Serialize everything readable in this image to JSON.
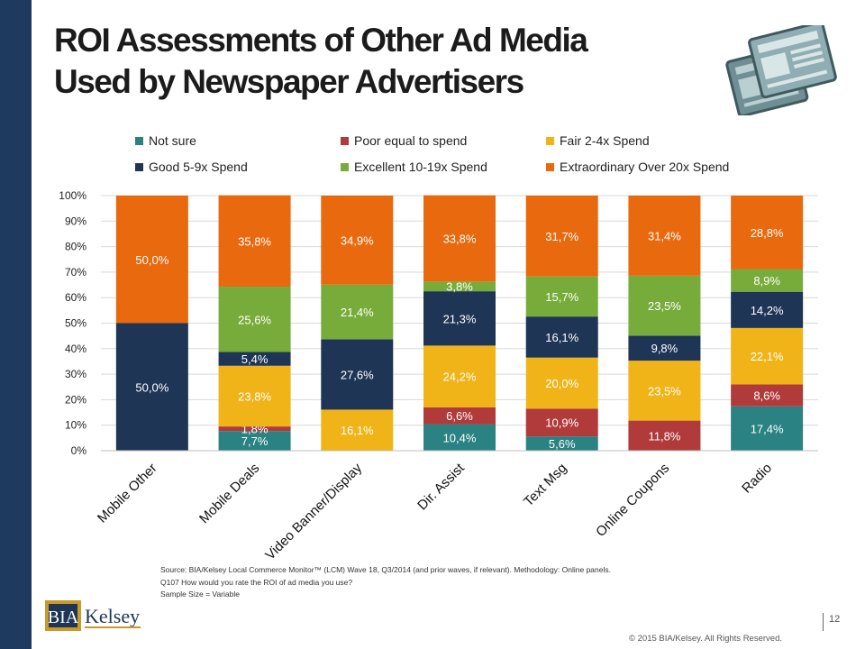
{
  "header": {
    "title_line1": "ROI Assessments of Other Ad Media",
    "title_line2": "Used by Newspaper Advertisers"
  },
  "icons": {
    "decoration": "newspaper-icon"
  },
  "chart_data": {
    "type": "bar",
    "stacked": true,
    "categories": [
      "Mobile Other",
      "Mobile Deals",
      "Video Banner/Display",
      "Dir. Assist",
      "Text Msg",
      "Online Coupons",
      "Radio"
    ],
    "ylim": [
      0,
      100
    ],
    "yticks": [
      "0%",
      "10%",
      "20%",
      "30%",
      "40%",
      "50%",
      "60%",
      "70%",
      "80%",
      "90%",
      "100%"
    ],
    "grid": true,
    "legend_position": "top",
    "series": [
      {
        "name": "Not sure",
        "color": "#2a8282",
        "values": [
          0,
          7.7,
          0,
          10.4,
          5.6,
          0,
          17.4
        ],
        "labels": [
          "",
          "7,7%",
          "",
          "10,4%",
          "5,6%",
          "",
          "17,4%"
        ]
      },
      {
        "name": "Poor equal to spend",
        "color": "#b13a3a",
        "values": [
          0,
          1.8,
          0,
          6.6,
          10.9,
          11.8,
          8.6
        ],
        "labels": [
          "",
          "1,8%",
          "",
          "6,6%",
          "10,9%",
          "11,8%",
          "8,6%"
        ]
      },
      {
        "name": "Fair 2-4x Spend",
        "color": "#f0b419",
        "values": [
          0,
          23.8,
          16.1,
          24.2,
          20.0,
          23.5,
          22.1
        ],
        "labels": [
          "",
          "23,8%",
          "16,1%",
          "24,2%",
          "20,0%",
          "23,5%",
          "22,1%"
        ]
      },
      {
        "name": "Good 5-9x Spend",
        "color": "#1e3556",
        "values": [
          50.0,
          5.4,
          27.6,
          21.3,
          16.1,
          9.8,
          14.2
        ],
        "labels": [
          "50,0%",
          "5,4%",
          "27,6%",
          "21,3%",
          "16,1%",
          "9,8%",
          "14,2%"
        ]
      },
      {
        "name": "Excellent 10-19x Spend",
        "color": "#77ac3a",
        "values": [
          0,
          25.6,
          21.4,
          3.8,
          15.7,
          23.5,
          8.9
        ],
        "labels": [
          "",
          "25,6%",
          "21,4%",
          "3,8%",
          "15,7%",
          "23,5%",
          "8,9%"
        ]
      },
      {
        "name": "Extraordinary Over 20x Spend",
        "color": "#e8690e",
        "values": [
          50.0,
          35.8,
          34.9,
          33.8,
          31.7,
          31.4,
          28.8
        ],
        "labels": [
          "50,0%",
          "35,8%",
          "34,9%",
          "33,8%",
          "31,7%",
          "31,4%",
          "28,8%"
        ]
      }
    ]
  },
  "footer": {
    "source_line1": "Source: BIA/Kelsey Local Commerce Monitor™ (LCM) Wave 18, Q3/2014 (and prior waves, if relevant). Methodology: Online panels.",
    "source_line2": "Q107 How would you rate the ROI of ad media you use?",
    "source_line3": "Sample Size = Variable",
    "logo_text_left": "BIA",
    "logo_text_right": "Kelsey",
    "page_number": "12",
    "copyright": "© 2015 BIA/Kelsey. All Rights Reserved."
  }
}
